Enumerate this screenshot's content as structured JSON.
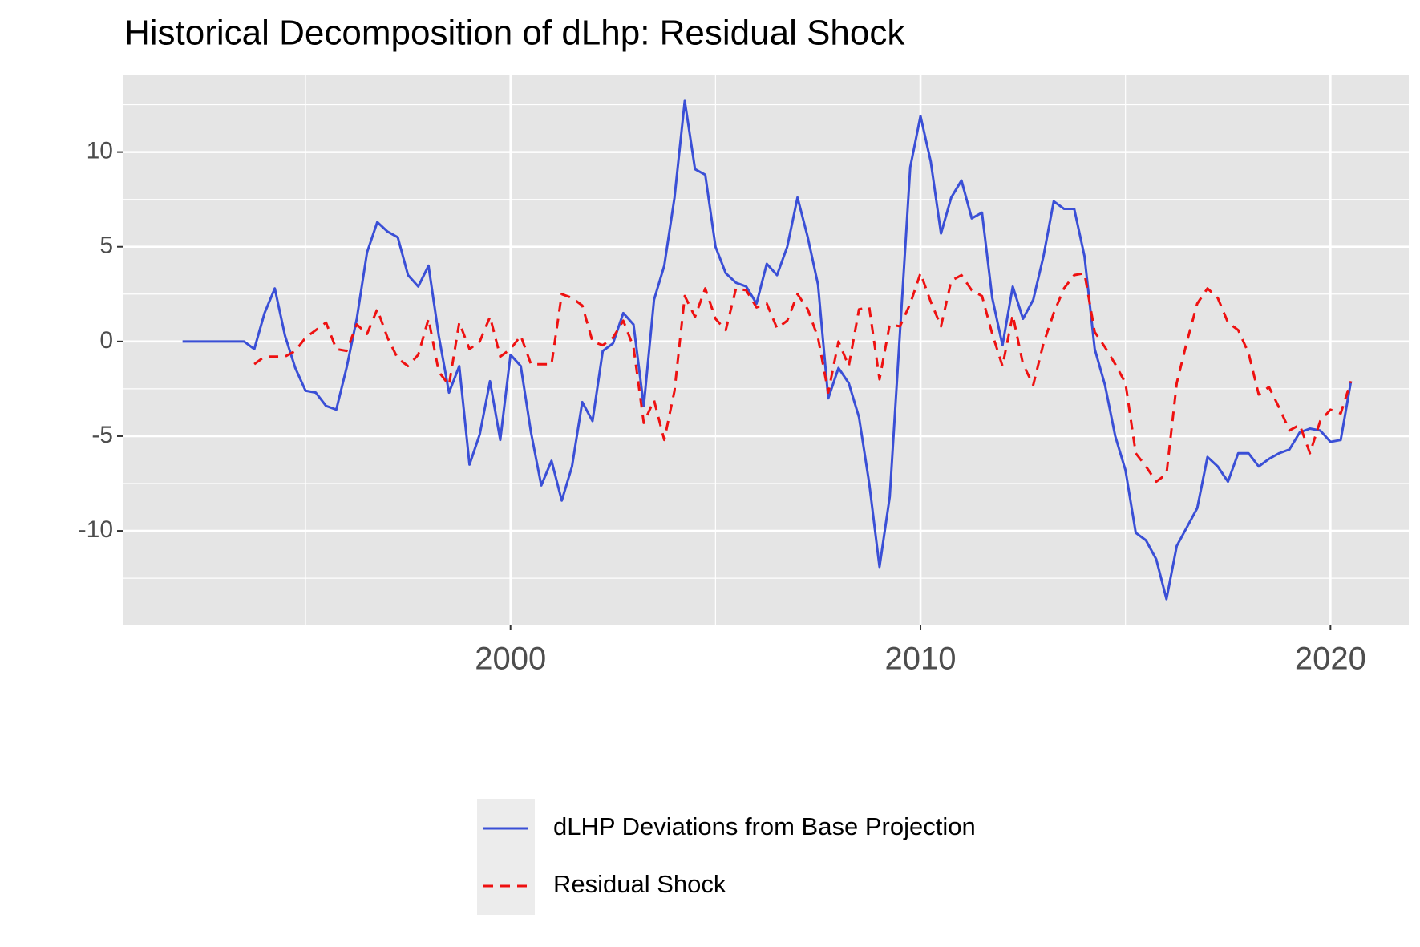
{
  "chart_data": {
    "type": "line",
    "title": "Historical Decomposition of dLhp: Residual Shock",
    "x": [
      1992,
      1992.25,
      1992.5,
      1992.75,
      1993,
      1993.25,
      1993.5,
      1993.75,
      1994,
      1994.25,
      1994.5,
      1994.75,
      1995,
      1995.25,
      1995.5,
      1995.75,
      1996,
      1996.25,
      1996.5,
      1996.75,
      1997,
      1997.25,
      1997.5,
      1997.75,
      1998,
      1998.25,
      1998.5,
      1998.75,
      1999,
      1999.25,
      1999.5,
      1999.75,
      2000,
      2000.25,
      2000.5,
      2000.75,
      2001,
      2001.25,
      2001.5,
      2001.75,
      2002,
      2002.25,
      2002.5,
      2002.75,
      2003,
      2003.25,
      2003.5,
      2003.75,
      2004,
      2004.25,
      2004.5,
      2004.75,
      2005,
      2005.25,
      2005.5,
      2005.75,
      2006,
      2006.25,
      2006.5,
      2006.75,
      2007,
      2007.25,
      2007.5,
      2007.75,
      2008,
      2008.25,
      2008.5,
      2008.75,
      2009,
      2009.25,
      2009.5,
      2009.75,
      2010,
      2010.25,
      2010.5,
      2010.75,
      2011,
      2011.25,
      2011.5,
      2011.75,
      2012,
      2012.25,
      2012.5,
      2012.75,
      2013,
      2013.25,
      2013.5,
      2013.75,
      2014,
      2014.25,
      2014.5,
      2014.75,
      2015,
      2015.25,
      2015.5,
      2015.75,
      2016,
      2016.25,
      2016.5,
      2016.75,
      2017,
      2017.25,
      2017.5,
      2017.75,
      2018,
      2018.25,
      2018.5,
      2018.75,
      2019,
      2019.25,
      2019.5,
      2019.75,
      2020,
      2020.25,
      2020.5
    ],
    "series": [
      {
        "name": "dLHP Deviations from Base Projection",
        "color": "#3a4fd6",
        "dash": "solid",
        "values": [
          0,
          0,
          0,
          0,
          0,
          0,
          0,
          -0.4,
          1.5,
          2.8,
          0.3,
          -1.4,
          -2.6,
          -2.7,
          -3.4,
          -3.6,
          -1.4,
          1.2,
          4.7,
          6.3,
          5.8,
          5.5,
          3.5,
          2.9,
          4.0,
          0.3,
          -2.7,
          -1.3,
          -6.5,
          -4.9,
          -2.1,
          -5.2,
          -0.7,
          -1.3,
          -4.8,
          -7.6,
          -6.3,
          -8.4,
          -6.6,
          -3.2,
          -4.2,
          -0.5,
          -0.1,
          1.5,
          0.9,
          -3.4,
          2.2,
          4.0,
          7.6,
          12.7,
          9.1,
          8.8,
          5.0,
          3.6,
          3.1,
          2.9,
          2.0,
          4.1,
          3.5,
          5.0,
          7.6,
          5.5,
          3.0,
          -3.0,
          -1.4,
          -2.2,
          -4.0,
          -7.5,
          -11.9,
          -8.2,
          0.5,
          9.2,
          11.9,
          9.5,
          5.7,
          7.6,
          8.5,
          6.5,
          6.8,
          2.3,
          -0.2,
          2.9,
          1.2,
          2.2,
          4.5,
          7.4,
          7.0,
          7.0,
          4.5,
          -0.4,
          -2.3,
          -5.0,
          -6.8,
          -10.1,
          -10.5,
          -11.5,
          -13.6,
          -10.8,
          -9.8,
          -8.8,
          -6.1,
          -6.6,
          -7.4,
          -5.9,
          -5.9,
          -6.6,
          -6.2,
          -5.9,
          -5.7,
          -4.8,
          -4.6,
          -4.7,
          -5.3,
          -5.2,
          -2.1
        ]
      },
      {
        "name": "Residual Shock",
        "color": "#ee1111",
        "dash": "dashed",
        "values": [
          null,
          null,
          null,
          null,
          null,
          null,
          null,
          -1.2,
          -0.8,
          -0.8,
          -0.8,
          -0.5,
          0.2,
          0.6,
          1.0,
          -0.4,
          -0.5,
          0.9,
          0.4,
          1.7,
          0.2,
          -0.9,
          -1.3,
          -0.7,
          1.2,
          -1.6,
          -2.3,
          1.0,
          -0.4,
          0.0,
          1.3,
          -0.8,
          -0.4,
          0.3,
          -1.2,
          -1.2,
          -1.2,
          2.5,
          2.3,
          1.9,
          0.0,
          -0.2,
          0.2,
          1.1,
          -0.3,
          -4.3,
          -3.1,
          -5.2,
          -2.6,
          2.4,
          1.3,
          2.8,
          1.2,
          0.6,
          2.8,
          2.7,
          1.8,
          2.0,
          0.7,
          1.1,
          2.5,
          1.7,
          0.2,
          -2.7,
          0.0,
          -1.3,
          1.7,
          1.8,
          -2.0,
          0.9,
          0.8,
          2.0,
          3.6,
          2.1,
          0.8,
          3.2,
          3.5,
          2.7,
          2.4,
          0.4,
          -1.3,
          1.4,
          -1.2,
          -2.3,
          -0.1,
          1.5,
          2.8,
          3.5,
          3.6,
          0.5,
          -0.3,
          -1.2,
          -2.2,
          -5.9,
          -6.6,
          -7.4,
          -7.0,
          -2.2,
          0.0,
          2.0,
          2.8,
          2.3,
          1.0,
          0.6,
          -0.6,
          -2.8,
          -2.4,
          -3.5,
          -4.7,
          -4.4,
          -5.9,
          -4.2,
          -3.6,
          -3.8,
          -2.1
        ]
      }
    ],
    "xlim": [
      1990.54,
      2021.91
    ],
    "xticks": [
      2000,
      2010,
      2020
    ],
    "ylim": [
      -14.95,
      14.09
    ],
    "yticks": [
      -10,
      -5,
      0,
      5,
      10
    ],
    "grid": true,
    "legend": "bottom"
  }
}
